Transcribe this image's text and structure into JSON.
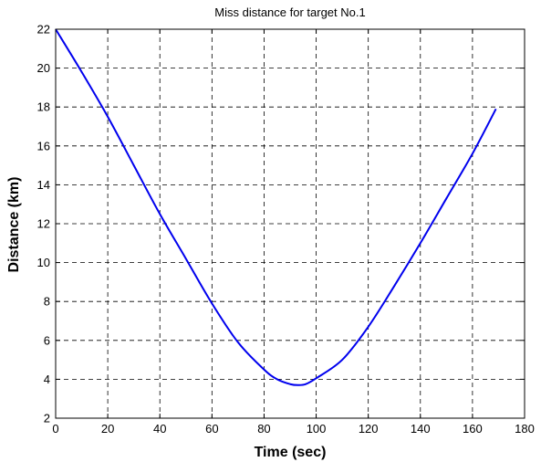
{
  "chart_data": {
    "type": "line",
    "title": "Miss distance for target No.1",
    "xlabel": "Time (sec)",
    "ylabel": "Distance (km)",
    "xlim": [
      0,
      180
    ],
    "ylim": [
      2,
      22
    ],
    "xticks": [
      0,
      20,
      40,
      60,
      80,
      100,
      120,
      140,
      160,
      180
    ],
    "yticks": [
      2,
      4,
      6,
      8,
      10,
      12,
      14,
      16,
      18,
      20,
      22
    ],
    "grid": true,
    "line_color": "#0000ee",
    "series": [
      {
        "x": [
          0,
          10,
          20,
          30,
          40,
          50,
          60,
          70,
          80,
          85,
          90,
          93,
          96,
          100,
          110,
          120,
          130,
          140,
          150,
          160,
          169
        ],
        "y": [
          22.0,
          19.8,
          17.5,
          15.0,
          12.5,
          10.2,
          7.9,
          5.9,
          4.5,
          4.0,
          3.75,
          3.7,
          3.75,
          4.05,
          5.0,
          6.7,
          8.8,
          11.0,
          13.3,
          15.6,
          17.9
        ]
      }
    ]
  }
}
